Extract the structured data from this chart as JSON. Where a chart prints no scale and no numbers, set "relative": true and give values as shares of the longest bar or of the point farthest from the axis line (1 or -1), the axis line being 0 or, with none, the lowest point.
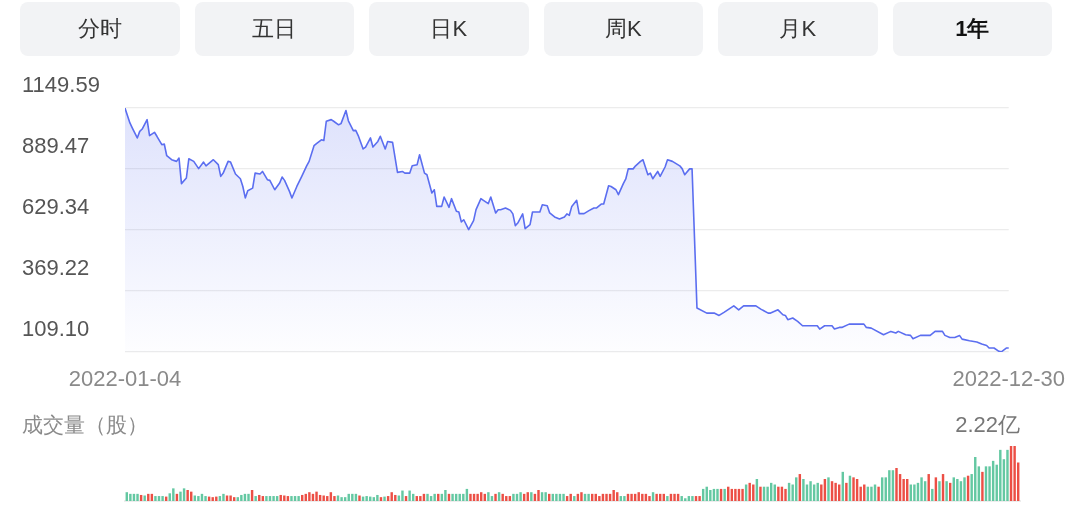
{
  "chart_data": [
    {
      "type": "other",
      "annotations": [
        "分时",
        "五日",
        "日K",
        "周K",
        "月K",
        "1年"
      ]
    },
    {
      "type": "area",
      "color": "#5b6ef0",
      "x": [
        "2022-01-04",
        "2022-01-06",
        "2022-01-07",
        "2022-01-09",
        "2022-01-10",
        "2022-01-11",
        "2022-01-13",
        "2022-01-14",
        "2022-01-16",
        "2022-01-17",
        "2022-01-19",
        "2022-01-20",
        "2022-01-21",
        "2022-01-23",
        "2022-01-25",
        "2022-01-26",
        "2022-01-27",
        "2022-01-29",
        "2022-01-30",
        "2022-02-01",
        "2022-02-03",
        "2022-02-05",
        "2022-02-06",
        "2022-02-09",
        "2022-02-11",
        "2022-02-12",
        "2022-02-13",
        "2022-02-15",
        "2022-02-16",
        "2022-02-18",
        "2022-02-20",
        "2022-02-21",
        "2022-02-22",
        "2022-02-23",
        "2022-02-25",
        "2022-02-26",
        "2022-02-28",
        "2022-03-01",
        "2022-03-03",
        "2022-03-04",
        "2022-03-06",
        "2022-03-08",
        "2022-03-09",
        "2022-03-10",
        "2022-03-12",
        "2022-03-13",
        "2022-03-15",
        "2022-03-17",
        "2022-03-19",
        "2022-03-20",
        "2022-03-22",
        "2022-03-23",
        "2022-03-25",
        "2022-03-26",
        "2022-03-27",
        "2022-03-29",
        "2022-03-30",
        "2022-04-01",
        "2022-04-02",
        "2022-04-04",
        "2022-04-05",
        "2022-04-07",
        "2022-04-08",
        "2022-04-09",
        "2022-04-11",
        "2022-04-12",
        "2022-04-14",
        "2022-04-15",
        "2022-04-17",
        "2022-04-18",
        "2022-04-20",
        "2022-04-21",
        "2022-04-23",
        "2022-04-25",
        "2022-04-27",
        "2022-04-28",
        "2022-04-30",
        "2022-05-01",
        "2022-05-03",
        "2022-05-04",
        "2022-05-06",
        "2022-05-07",
        "2022-05-09",
        "2022-05-10",
        "2022-05-11",
        "2022-05-13",
        "2022-05-14",
        "2022-05-16",
        "2022-05-17",
        "2022-05-19",
        "2022-05-20",
        "2022-05-21",
        "2022-05-22",
        "2022-05-24",
        "2022-05-26",
        "2022-05-27",
        "2022-05-29",
        "2022-05-30",
        "2022-06-01",
        "2022-06-02",
        "2022-06-04",
        "2022-06-05",
        "2022-06-06",
        "2022-06-08",
        "2022-06-10",
        "2022-06-11",
        "2022-06-12",
        "2022-06-13",
        "2022-06-15",
        "2022-06-16",
        "2022-06-18",
        "2022-06-19",
        "2022-06-22",
        "2022-06-23",
        "2022-06-25",
        "2022-06-26",
        "2022-06-28",
        "2022-06-30",
        "2022-07-02",
        "2022-07-03",
        "2022-07-04",
        "2022-07-05",
        "2022-07-07",
        "2022-07-08",
        "2022-07-10",
        "2022-07-12",
        "2022-07-14",
        "2022-07-15",
        "2022-07-17",
        "2022-07-18",
        "2022-07-20",
        "2022-07-21",
        "2022-07-23",
        "2022-07-24",
        "2022-07-26",
        "2022-07-27",
        "2022-07-28",
        "2022-07-30",
        "2022-07-31",
        "2022-08-02",
        "2022-08-03",
        "2022-08-05",
        "2022-08-06",
        "2022-08-07",
        "2022-08-09",
        "2022-08-10",
        "2022-08-12",
        "2022-08-13",
        "2022-08-15",
        "2022-08-18",
        "2022-08-19",
        "2022-08-20",
        "2022-08-22",
        "2022-08-23",
        "2022-08-25",
        "2022-08-29",
        "2022-09-01",
        "2022-09-03",
        "2022-09-05",
        "2022-09-09",
        "2022-09-11",
        "2022-09-13",
        "2022-09-18",
        "2022-09-20",
        "2022-09-23",
        "2022-09-24",
        "2022-09-27",
        "2022-09-29",
        "2022-09-30",
        "2022-10-01",
        "2022-10-03",
        "2022-10-05",
        "2022-10-07",
        "2022-10-13",
        "2022-10-14",
        "2022-10-16",
        "2022-10-19",
        "2022-10-20",
        "2022-10-22",
        "2022-10-23",
        "2022-10-26",
        "2022-11-01",
        "2022-11-02",
        "2022-11-04",
        "2022-11-09",
        "2022-11-12",
        "2022-11-14",
        "2022-11-15",
        "2022-11-18",
        "2022-11-20",
        "2022-11-21",
        "2022-11-24",
        "2022-11-28",
        "2022-11-30",
        "2022-12-03",
        "2022-12-04",
        "2022-12-06",
        "2022-12-08",
        "2022-12-10",
        "2022-12-11",
        "2022-12-14",
        "2022-12-17",
        "2022-12-19",
        "2022-12-21",
        "2022-12-22",
        "2022-12-24",
        "2022-12-26",
        "2022-12-27",
        "2022-12-29",
        "2022-12-30"
      ],
      "values": [
        1149,
        1086,
        1064,
        1022,
        1050,
        1060,
        1100,
        1032,
        1046,
        1029,
        993,
        996,
        946,
        929,
        922,
        936,
        827,
        851,
        933,
        922,
        891,
        919,
        903,
        929,
        908,
        858,
        872,
        922,
        919,
        868,
        848,
        815,
        766,
        797,
        808,
        872,
        868,
        879,
        844,
        841,
        801,
        830,
        855,
        841,
        794,
        766,
        815,
        858,
        903,
        922,
        989,
        998,
        1014,
        1011,
        1093,
        1100,
        1093,
        1078,
        1083,
        1139,
        1095,
        1053,
        1054,
        1032,
        975,
        983,
        1022,
        983,
        1007,
        1029,
        975,
        1007,
        1003,
        875,
        879,
        872,
        872,
        903,
        908,
        950,
        872,
        865,
        787,
        801,
        730,
        730,
        770,
        726,
        763,
        709,
        706,
        664,
        673,
        631,
        669,
        716,
        763,
        756,
        742,
        770,
        702,
        716,
        716,
        723,
        713,
        698,
        648,
        659,
        698,
        635,
        652,
        706,
        706,
        737,
        733,
        702,
        685,
        676,
        685,
        698,
        692,
        730,
        756,
        699,
        699,
        712,
        723,
        723,
        740,
        740,
        818,
        815,
        801,
        780,
        827,
        847,
        890,
        890,
        903,
        922,
        929,
        865,
        872,
        848,
        879,
        858,
        898,
        929,
        922,
        903,
        890,
        865,
        890,
        890,
        297,
        275,
        275,
        265,
        278,
        306,
        289,
        306,
        306,
        292,
        275,
        275,
        289,
        268,
        265,
        247,
        254,
        240,
        221,
        221,
        207,
        221,
        221,
        207,
        214,
        214,
        228,
        228,
        214,
        211,
        183,
        197,
        190,
        197,
        183,
        180,
        166,
        180,
        180,
        197,
        197,
        180,
        171,
        171,
        179,
        164,
        157,
        152,
        143,
        137,
        126,
        126,
        112,
        110,
        126,
        126
      ],
      "xlim": [
        "2022-01-04",
        "2022-12-30"
      ],
      "xticks": [
        "2022-01-04",
        "2022-12-30"
      ],
      "ylim": [
        109.1,
        1149.59
      ],
      "yticks": [
        {
          "value": 109.1,
          "label": "109.10"
        },
        369.22,
        629.34,
        889.47,
        1149.59
      ],
      "grid": "y"
    },
    {
      "type": "bar",
      "relative": true,
      "ylabel": "成交量（股）",
      "annotations": [
        "2.22亿"
      ],
      "categories": [
        null,
        null,
        null,
        null,
        null,
        null,
        null,
        null,
        null,
        null,
        null,
        null,
        null,
        null,
        null,
        null,
        null,
        null,
        null,
        null,
        null,
        null,
        null,
        null,
        null,
        null,
        null,
        null,
        null,
        null,
        null,
        null,
        null,
        null,
        null,
        null,
        null,
        null,
        null,
        null,
        null,
        null,
        null,
        null,
        null,
        null,
        null,
        null,
        null,
        null,
        null,
        null,
        null,
        null,
        null,
        null,
        null,
        null,
        null,
        null,
        null,
        null,
        null,
        null,
        null,
        null,
        null,
        null,
        null,
        null,
        null,
        null,
        null,
        null,
        null,
        null,
        null,
        null,
        null,
        null,
        null,
        null,
        null,
        null,
        null,
        null,
        null,
        null,
        null,
        null,
        null,
        null,
        null,
        null,
        null,
        null,
        null,
        null,
        null,
        null,
        null,
        null,
        null,
        null,
        null,
        null,
        null,
        null,
        null,
        null,
        null,
        null,
        null,
        null,
        null,
        null,
        null,
        null,
        null,
        null,
        null,
        null,
        null,
        null,
        null,
        null,
        null,
        null,
        null,
        null,
        null,
        null,
        null,
        null,
        null,
        null,
        null,
        null,
        null,
        null,
        null,
        null,
        null,
        null,
        null,
        null,
        null,
        null,
        null,
        null,
        null,
        null,
        null,
        null,
        null,
        null,
        null,
        null,
        null,
        null,
        null,
        null,
        null,
        null,
        null,
        null,
        null,
        null,
        null,
        null,
        null,
        null,
        null,
        null,
        null,
        null,
        null,
        null,
        null,
        null,
        null,
        null,
        null,
        null,
        null,
        null,
        null,
        null,
        null,
        null,
        null,
        null,
        null,
        null,
        null,
        null,
        null,
        null,
        null,
        null,
        null,
        null,
        null,
        null,
        null,
        null,
        null,
        null,
        null,
        null,
        null,
        null,
        null,
        null,
        null,
        null,
        null,
        null,
        null,
        null,
        null,
        null,
        null,
        null,
        null,
        null,
        null,
        null,
        null,
        null,
        null,
        null,
        null,
        null,
        null,
        null,
        null,
        null,
        null,
        null,
        null,
        null,
        null,
        null,
        null,
        null,
        null,
        null,
        null,
        null
      ],
      "values": [
        0.16,
        0.13,
        0.13,
        0.13,
        0.11,
        0.1,
        0.13,
        0.13,
        0.09,
        0.09,
        0.09,
        0.08,
        0.14,
        0.23,
        0.13,
        0.17,
        0.23,
        0.2,
        0.17,
        0.1,
        0.09,
        0.13,
        0.09,
        0.08,
        0.07,
        0.08,
        0.09,
        0.13,
        0.1,
        0.1,
        0.07,
        0.07,
        0.11,
        0.13,
        0.13,
        0.2,
        0.09,
        0.11,
        0.09,
        0.09,
        0.09,
        0.09,
        0.09,
        0.11,
        0.1,
        0.09,
        0.09,
        0.09,
        0.09,
        0.11,
        0.13,
        0.16,
        0.13,
        0.17,
        0.11,
        0.1,
        0.09,
        0.16,
        0.09,
        0.1,
        0.07,
        0.07,
        0.13,
        0.13,
        0.13,
        0.1,
        0.08,
        0.09,
        0.08,
        0.07,
        0.11,
        0.07,
        0.08,
        0.09,
        0.16,
        0.11,
        0.1,
        0.19,
        0.09,
        0.19,
        0.13,
        0.09,
        0.09,
        0.13,
        0.13,
        0.09,
        0.13,
        0.13,
        0.13,
        0.2,
        0.13,
        0.13,
        0.13,
        0.13,
        0.13,
        0.22,
        0.13,
        0.13,
        0.13,
        0.16,
        0.13,
        0.16,
        0.09,
        0.13,
        0.16,
        0.13,
        0.09,
        0.09,
        0.13,
        0.13,
        0.16,
        0.13,
        0.16,
        0.16,
        0.13,
        0.2,
        0.16,
        0.16,
        0.13,
        0.13,
        0.13,
        0.13,
        0.13,
        0.09,
        0.13,
        0.09,
        0.13,
        0.16,
        0.13,
        0.13,
        0.13,
        0.13,
        0.09,
        0.13,
        0.13,
        0.13,
        0.2,
        0.16,
        0.09,
        0.09,
        0.13,
        0.13,
        0.13,
        0.16,
        0.13,
        0.13,
        0.09,
        0.16,
        0.13,
        0.13,
        0.13,
        0.09,
        0.13,
        0.13,
        0.13,
        0.09,
        0.05,
        0.09,
        0.09,
        0.09,
        0.09,
        0.22,
        0.26,
        0.2,
        0.22,
        0.22,
        0.22,
        0.22,
        0.26,
        0.22,
        0.22,
        0.22,
        0.22,
        0.3,
        0.33,
        0.3,
        0.4,
        0.26,
        0.26,
        0.26,
        0.33,
        0.3,
        0.26,
        0.26,
        0.22,
        0.33,
        0.3,
        0.43,
        0.49,
        0.4,
        0.3,
        0.36,
        0.3,
        0.33,
        0.3,
        0.4,
        0.43,
        0.36,
        0.33,
        0.3,
        0.53,
        0.33,
        0.46,
        0.43,
        0.4,
        0.26,
        0.3,
        0.26,
        0.26,
        0.3,
        0.26,
        0.43,
        0.43,
        0.56,
        0.56,
        0.6,
        0.49,
        0.4,
        0.4,
        0.3,
        0.3,
        0.33,
        0.43,
        0.36,
        0.49,
        0.22,
        0.43,
        0.36,
        0.49,
        0.36,
        0.33,
        0.43,
        0.4,
        0.36,
        0.43,
        0.46,
        0.49,
        0.8,
        0.63,
        0.53,
        0.63,
        0.63,
        0.73,
        0.66,
        0.93,
        0.76,
        0.93,
        1.0,
        1.0,
        0.7
      ],
      "colors": [
        "#64c8a2",
        "#64c8a2",
        "#64c8a2",
        "#64c8a2",
        "#ec4f45",
        "#64c8a2",
        "#ec4f45",
        "#ec4f45",
        "#64c8a2",
        "#64c8a2",
        "#64c8a2",
        "#ec4f45",
        "#64c8a2",
        "#64c8a2",
        "#ec4f45",
        "#64c8a2",
        "#64c8a2",
        "#ec4f45",
        "#ec4f45",
        "#64c8a2",
        "#64c8a2",
        "#64c8a2",
        "#64c8a2",
        "#ec4f45",
        "#ec4f45",
        "#ec4f45",
        "#64c8a2",
        "#64c8a2",
        "#ec4f45",
        "#ec4f45",
        "#ec4f45",
        "#64c8a2",
        "#64c8a2",
        "#64c8a2",
        "#64c8a2",
        "#ec4f45",
        "#64c8a2",
        "#ec4f45",
        "#ec4f45",
        "#64c8a2",
        "#64c8a2",
        "#64c8a2",
        "#64c8a2",
        "#ec4f45",
        "#ec4f45",
        "#ec4f45",
        "#64c8a2",
        "#64c8a2",
        "#64c8a2",
        "#ec4f45",
        "#ec4f45",
        "#ec4f45",
        "#ec4f45",
        "#ec4f45",
        "#ec4f45",
        "#ec4f45",
        "#ec4f45",
        "#ec4f45",
        "#ec4f45",
        "#64c8a2",
        "#64c8a2",
        "#64c8a2",
        "#64c8a2",
        "#64c8a2",
        "#64c8a2",
        "#ec4f45",
        "#64c8a2",
        "#64c8a2",
        "#64c8a2",
        "#64c8a2",
        "#64c8a2",
        "#ec4f45",
        "#64c8a2",
        "#ec4f45",
        "#ec4f45",
        "#ec4f45",
        "#64c8a2",
        "#64c8a2",
        "#ec4f45",
        "#64c8a2",
        "#64c8a2",
        "#ec4f45",
        "#ec4f45",
        "#ec4f45",
        "#64c8a2",
        "#64c8a2",
        "#64c8a2",
        "#ec4f45",
        "#64c8a2",
        "#64c8a2",
        "#ec4f45",
        "#64c8a2",
        "#64c8a2",
        "#64c8a2",
        "#64c8a2",
        "#64c8a2",
        "#ec4f45",
        "#ec4f45",
        "#ec4f45",
        "#ec4f45",
        "#ec4f45",
        "#64c8a2",
        "#64c8a2",
        "#ec4f45",
        "#64c8a2",
        "#ec4f45",
        "#ec4f45",
        "#ec4f45",
        "#64c8a2",
        "#64c8a2",
        "#64c8a2",
        "#ec4f45",
        "#ec4f45",
        "#64c8a2",
        "#ec4f45",
        "#ec4f45",
        "#64c8a2",
        "#64c8a2",
        "#ec4f45",
        "#64c8a2",
        "#64c8a2",
        "#64c8a2",
        "#64c8a2",
        "#ec4f45",
        "#ec4f45",
        "#64c8a2",
        "#ec4f45",
        "#ec4f45",
        "#64c8a2",
        "#64c8a2",
        "#ec4f45",
        "#ec4f45",
        "#ec4f45",
        "#ec4f45",
        "#ec4f45",
        "#ec4f45",
        "#ec4f45",
        "#ec4f45",
        "#64c8a2",
        "#64c8a2",
        "#ec4f45",
        "#ec4f45",
        "#ec4f45",
        "#ec4f45",
        "#ec4f45",
        "#ec4f45",
        "#ec4f45",
        "#64c8a2",
        "#ec4f45",
        "#ec4f45",
        "#ec4f45",
        "#64c8a2",
        "#ec4f45",
        "#ec4f45",
        "#ec4f45",
        "#64c8a2",
        "#64c8a2",
        "#64c8a2",
        "#64c8a2",
        "#ec4f45",
        "#ec4f45",
        "#64c8a2",
        "#64c8a2",
        "#64c8a2",
        "#64c8a2",
        "#64c8a2",
        "#ec4f45",
        "#64c8a2",
        "#ec4f45",
        "#ec4f45",
        "#ec4f45",
        "#ec4f45",
        "#ec4f45",
        "#64c8a2",
        "#ec4f45",
        "#ec4f45",
        "#64c8a2",
        "#ec4f45",
        "#64c8a2",
        "#64c8a2",
        "#64c8a2",
        "#64c8a2",
        "#ec4f45",
        "#ec4f45",
        "#ec4f45",
        "#64c8a2",
        "#64c8a2",
        "#64c8a2",
        "#ec4f45",
        "#64c8a2",
        "#64c8a2",
        "#64c8a2",
        "#64c8a2",
        "#64c8a2",
        "#ec4f45",
        "#ec4f45",
        "#64c8a2",
        "#ec4f45",
        "#ec4f45",
        "#ec4f45",
        "#64c8a2",
        "#ec4f45",
        "#64c8a2",
        "#ec4f45",
        "#ec4f45",
        "#ec4f45",
        "#ec4f45",
        "#64c8a2",
        "#64c8a2",
        "#64c8a2",
        "#ec4f45",
        "#64c8a2",
        "#64c8a2",
        "#64c8a2",
        "#64c8a2",
        "#ec4f45",
        "#ec4f45",
        "#ec4f45",
        "#ec4f45",
        "#64c8a2",
        "#64c8a2",
        "#64c8a2",
        "#64c8a2",
        "#64c8a2",
        "#ec4f45",
        "#64c8a2",
        "#ec4f45",
        "#64c8a2",
        "#ec4f45",
        "#64c8a2",
        "#ec4f45",
        "#64c8a2",
        "#64c8a2",
        "#64c8a2",
        "#64c8a2",
        "#ec4f45",
        "#64c8a2",
        "#64c8a2",
        "#64c8a2",
        "#ec4f45",
        "#64c8a2",
        "#64c8a2",
        "#64c8a2",
        "#64c8a2",
        "#64c8a2",
        "#64c8a2",
        "#64c8a2",
        "#ec4f45",
        "#ec4f45",
        "#ec4f45"
      ]
    }
  ]
}
